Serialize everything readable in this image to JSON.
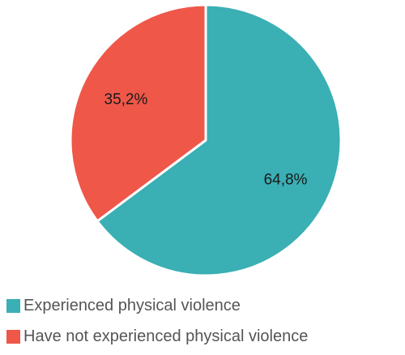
{
  "chart_data": {
    "type": "pie",
    "categories": [
      "Experienced physical violence",
      "Have not experienced physical violence"
    ],
    "values": [
      64.8,
      35.2
    ],
    "labels": [
      "64,8%",
      "35,2%"
    ],
    "colors": [
      "#3aafb4",
      "#ef5749"
    ],
    "title": "",
    "legend_position": "bottom-left"
  },
  "legend": {
    "items": [
      {
        "label": "Experienced physical violence",
        "color": "#3aafb4"
      },
      {
        "label": "Have not experienced physical violence",
        "color": "#ef5749"
      }
    ]
  }
}
